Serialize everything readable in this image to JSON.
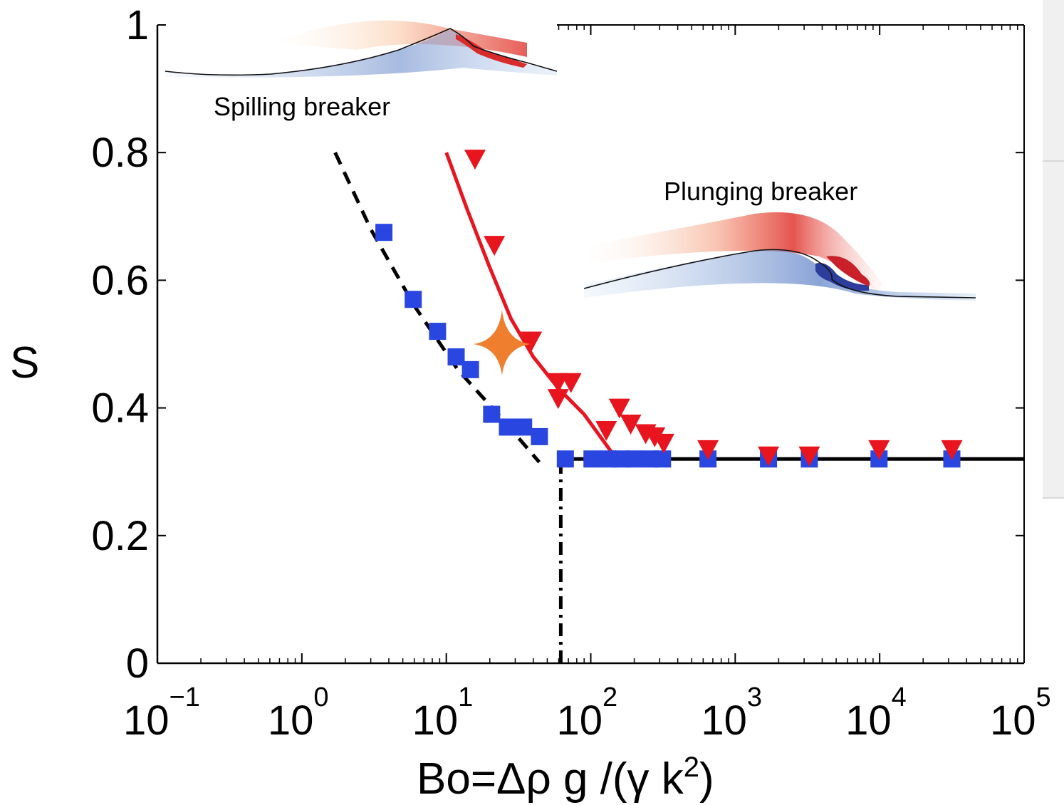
{
  "chart_data": {
    "type": "scatter",
    "x_scale": "log",
    "xlim": [
      0.1,
      100000
    ],
    "ylim": [
      0,
      1
    ],
    "xlabel": "Bo=Δρ g  /(γ k",
    "xlabel_sup": "2",
    "xlabel_close": ")",
    "ylabel": "S",
    "y_ticks": [
      {
        "value": 0,
        "label": "0"
      },
      {
        "value": 0.2,
        "label": "0.2"
      },
      {
        "value": 0.4,
        "label": "0.4"
      },
      {
        "value": 0.6,
        "label": "0.6"
      },
      {
        "value": 0.8,
        "label": "0.8"
      },
      {
        "value": 1,
        "label": "1"
      }
    ],
    "x_ticks": [
      {
        "value": 0.1,
        "base": "10",
        "exp": "−1"
      },
      {
        "value": 1,
        "base": "10",
        "exp": "0"
      },
      {
        "value": 10,
        "base": "10",
        "exp": "1"
      },
      {
        "value": 100,
        "base": "10",
        "exp": "2"
      },
      {
        "value": 1000,
        "base": "10",
        "exp": "3"
      },
      {
        "value": 10000,
        "base": "10",
        "exp": "4"
      },
      {
        "value": 100000,
        "base": "10",
        "exp": "5"
      }
    ],
    "series": [
      {
        "marker": "square",
        "color": "#2a46e0",
        "points": [
          [
            3.7,
            0.675
          ],
          [
            5.9,
            0.57
          ],
          [
            8.7,
            0.52
          ],
          [
            11.7,
            0.48
          ],
          [
            14.7,
            0.46
          ],
          [
            20.6,
            0.39
          ],
          [
            26.5,
            0.37
          ],
          [
            34.3,
            0.37
          ],
          [
            44.1,
            0.355
          ],
          [
            66.7,
            0.32
          ],
          [
            102,
            0.32
          ],
          [
            132,
            0.32
          ],
          [
            162,
            0.32
          ],
          [
            200,
            0.32
          ],
          [
            258,
            0.32
          ],
          [
            314,
            0.32
          ],
          [
            648,
            0.32
          ],
          [
            1700,
            0.32
          ],
          [
            3260,
            0.32
          ],
          [
            9900,
            0.32
          ],
          [
            31600,
            0.32
          ]
        ]
      },
      {
        "marker": "triangle-down",
        "color": "#e8141e",
        "points": [
          [
            15.8,
            0.79
          ],
          [
            21.5,
            0.655
          ],
          [
            38.8,
            0.505
          ],
          [
            59.5,
            0.44
          ],
          [
            72.9,
            0.44
          ],
          [
            59.5,
            0.415
          ],
          [
            128,
            0.365
          ],
          [
            158,
            0.4
          ],
          [
            189,
            0.375
          ],
          [
            240,
            0.36
          ],
          [
            277,
            0.355
          ],
          [
            320,
            0.345
          ],
          [
            648,
            0.335
          ],
          [
            1700,
            0.325
          ],
          [
            3260,
            0.325
          ],
          [
            9900,
            0.335
          ],
          [
            31600,
            0.335
          ]
        ]
      }
    ],
    "fit_lines": [
      {
        "style": "dashed",
        "color": "#000000",
        "points": [
          [
            1.7,
            0.8
          ],
          [
            3,
            0.68
          ],
          [
            6,
            0.56
          ],
          [
            12,
            0.46
          ],
          [
            25,
            0.38
          ],
          [
            44,
            0.315
          ]
        ]
      },
      {
        "style": "solid",
        "color": "#e8141e",
        "points": [
          [
            10,
            0.8
          ],
          [
            14,
            0.71
          ],
          [
            20,
            0.62
          ],
          [
            28,
            0.54
          ],
          [
            40,
            0.48
          ],
          [
            60,
            0.43
          ],
          [
            90,
            0.39
          ],
          [
            140,
            0.33
          ]
        ]
      },
      {
        "style": "solid",
        "color": "#000000",
        "points": [
          [
            62,
            0.32
          ],
          [
            100000,
            0.32
          ]
        ]
      },
      {
        "style": "dashdot",
        "color": "#000000",
        "points": [
          [
            62,
            0
          ],
          [
            62,
            0.32
          ]
        ]
      }
    ],
    "highlight_marker": {
      "shape": "star",
      "color": "#ef7f2e",
      "x": 24.3,
      "y": 0.5
    },
    "annotations": {
      "spilling": "Spilling breaker",
      "plunging": "Plunging breaker"
    }
  }
}
